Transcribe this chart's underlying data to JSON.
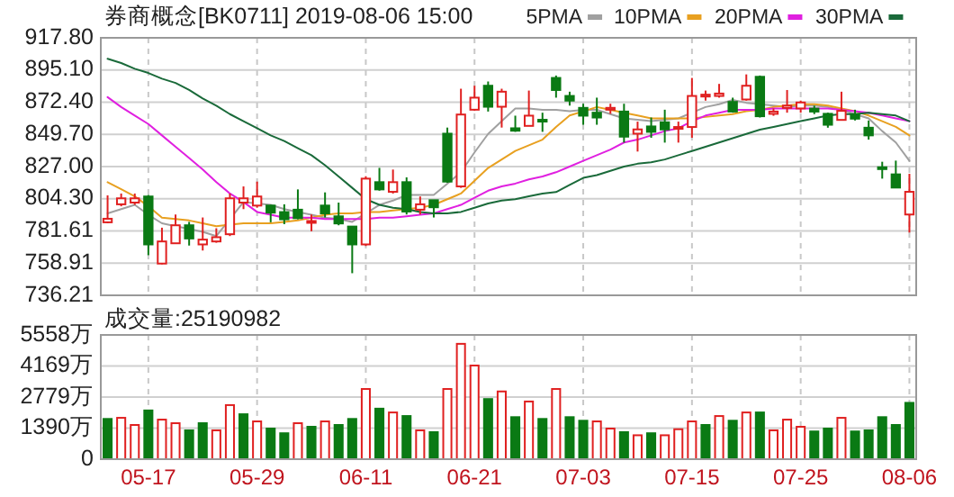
{
  "chart_data": [
    {
      "type": "candlestick",
      "title": "券商概念[BK0711] 2019-08-06 15:00",
      "categories": [
        null,
        null,
        null,
        null,
        null,
        null,
        null,
        null,
        null,
        null,
        null,
        null,
        null,
        null,
        null,
        null,
        null,
        null,
        null,
        null,
        null,
        null,
        null,
        null,
        null,
        null,
        null,
        null,
        null,
        null,
        null,
        null,
        null,
        null,
        null,
        null,
        null,
        null,
        null,
        null,
        null,
        null,
        null,
        null,
        null,
        null,
        null,
        null,
        null,
        null,
        null,
        null,
        null,
        null,
        null,
        null,
        null,
        null,
        null,
        null
      ],
      "ohlc": [
        [
          787.7,
          806.7,
          787,
          790.2
        ],
        [
          800.4,
          808,
          799,
          804.6
        ],
        [
          801.6,
          808,
          800,
          804.6
        ],
        [
          805.9,
          807,
          764.5,
          772.1
        ],
        [
          758.6,
          783.9,
          758.1,
          774.2
        ],
        [
          772.9,
          793.2,
          772.5,
          785.6
        ],
        [
          785.6,
          788,
          771.3,
          776.3
        ],
        [
          772.1,
          791.1,
          767.8,
          775.5
        ],
        [
          774.2,
          783.5,
          773.3,
          777.2
        ],
        [
          779.3,
          808,
          778,
          804.6
        ],
        [
          801.6,
          813,
          797,
          804.6
        ],
        [
          799.5,
          816.4,
          798,
          805.9
        ],
        [
          799.5,
          800,
          787.7,
          794.5
        ],
        [
          794.9,
          800.4,
          786.4,
          789.8
        ],
        [
          796.6,
          810.9,
          789.8,
          790.6
        ],
        [
          788.1,
          793.2,
          781.4,
          788.6
        ],
        [
          799.5,
          808.8,
          791.1,
          794
        ],
        [
          791.9,
          801.6,
          785.6,
          786.9
        ],
        [
          784.7,
          785,
          751.8,
          772.1
        ],
        [
          772.1,
          820.2,
          771,
          818.5
        ],
        [
          816,
          826.1,
          810,
          810.9
        ],
        [
          809.2,
          824.9,
          808,
          816
        ],
        [
          816,
          819.4,
          793.2,
          795.3
        ],
        [
          796.6,
          805.9,
          793.2,
          800.4
        ],
        [
          803.3,
          803.3,
          791.1,
          798.3
        ],
        [
          850.2,
          854.5,
          815.6,
          816.4
        ],
        [
          813,
          881.9,
          812,
          863.7
        ],
        [
          867.1,
          884,
          866.3,
          875.6
        ],
        [
          884,
          887,
          865.8,
          869.2
        ],
        [
          869.2,
          881.9,
          854.5,
          879.8
        ],
        [
          854,
          862.9,
          851.5,
          852.3
        ],
        [
          855.7,
          880.6,
          855.7,
          862.9
        ],
        [
          860,
          865,
          851.5,
          859
        ],
        [
          889.5,
          891.2,
          875.6,
          881
        ],
        [
          876.8,
          879.8,
          870,
          873.5
        ],
        [
          868.4,
          871.3,
          856.5,
          862.9
        ],
        [
          865,
          875.6,
          856.5,
          861.6
        ],
        [
          867.1,
          871.3,
          864.2,
          868.4
        ],
        [
          865.8,
          871.3,
          843.9,
          848.1
        ],
        [
          850.2,
          858.7,
          837.6,
          853.2
        ],
        [
          855.3,
          861.6,
          847.3,
          851.5
        ],
        [
          858.2,
          867.1,
          843.9,
          853.2
        ],
        [
          854.4,
          858.7,
          843.9,
          854.9
        ],
        [
          854.9,
          889.5,
          847.3,
          876.8
        ],
        [
          876.4,
          880.6,
          873.5,
          877.7
        ],
        [
          876.8,
          885.3,
          875.6,
          878.5
        ],
        [
          872.6,
          875.6,
          865,
          865.8
        ],
        [
          874.3,
          892,
          873.5,
          884
        ],
        [
          890.3,
          891.2,
          861.6,
          862.5
        ],
        [
          864.2,
          868,
          862.8,
          865.8
        ],
        [
          868.4,
          881,
          865,
          870
        ],
        [
          868,
          873.5,
          865,
          872.2
        ],
        [
          867.9,
          870,
          864,
          865.8
        ],
        [
          864.2,
          865,
          854.4,
          856.5
        ],
        [
          859.9,
          879.8,
          859.5,
          866.3
        ],
        [
          863.7,
          867.1,
          859.5,
          860.8
        ],
        [
          854.4,
          859.5,
          846,
          849
        ],
        [
          826.5,
          830.4,
          818.5,
          826.1
        ],
        [
          821.5,
          831.2,
          812.2,
          812.2
        ],
        [
          793.2,
          821.9,
          780.5,
          809.2
        ]
      ],
      "colors": [
        "#e02020",
        "#e02020",
        "#e02020",
        "#0a7a14",
        "#e02020",
        "#e02020",
        "#0a7a14",
        "#e02020",
        "#e02020",
        "#e02020",
        "#e02020",
        "#e02020",
        "#0a7a14",
        "#0a7a14",
        "#0a7a14",
        "#e02020",
        "#0a7a14",
        "#0a7a14",
        "#0a7a14",
        "#e02020",
        "#0a7a14",
        "#e02020",
        "#0a7a14",
        "#e02020",
        "#0a7a14",
        "#0a7a14",
        "#e02020",
        "#e02020",
        "#0a7a14",
        "#e02020",
        "#0a7a14",
        "#e02020",
        "#0a7a14",
        "#0a7a14",
        "#0a7a14",
        "#0a7a14",
        "#0a7a14",
        "#e02020",
        "#0a7a14",
        "#e02020",
        "#0a7a14",
        "#0a7a14",
        "#e02020",
        "#e02020",
        "#e02020",
        "#e02020",
        "#0a7a14",
        "#e02020",
        "#0a7a14",
        "#e02020",
        "#e02020",
        "#e02020",
        "#0a7a14",
        "#0a7a14",
        "#e02020",
        "#0a7a14",
        "#0a7a14",
        "#0a7a14",
        "#0a7a14",
        "#e02020"
      ],
      "series": [
        {
          "name": "5PMA",
          "type": "line",
          "color": "#a0a0a0",
          "values": [
            794,
            797,
            800,
            793,
            787,
            785,
            783,
            781,
            778,
            790,
            802,
            801,
            800,
            797,
            795,
            793,
            791,
            790,
            788,
            794,
            800,
            803,
            807,
            807,
            807,
            815,
            823,
            837,
            850,
            859,
            868,
            868,
            867,
            867,
            866,
            867,
            867,
            864,
            861,
            860,
            859,
            860,
            861,
            865,
            869,
            871,
            874,
            872,
            871,
            870,
            869,
            870,
            870,
            869,
            867,
            864,
            861,
            852,
            844,
            831
          ]
        },
        {
          "name": "10PMA",
          "type": "line",
          "color": "#e8a020",
          "values": [
            816,
            811,
            806,
            799,
            791,
            790,
            789,
            787,
            785,
            786,
            787,
            787,
            787,
            788,
            789,
            791,
            793,
            794,
            794,
            795,
            795,
            796,
            797,
            798,
            800,
            804,
            808,
            817,
            826,
            832,
            838,
            842,
            846,
            855,
            863,
            866,
            869,
            867,
            865,
            863,
            861,
            861,
            861,
            861,
            862,
            863,
            864,
            866,
            867,
            869,
            870,
            871,
            871,
            870,
            868,
            866,
            863,
            859,
            855,
            849
          ]
        },
        {
          "name": "20PMA",
          "type": "line",
          "color": "#e020e0",
          "values": [
            876,
            869,
            863,
            857,
            849,
            841,
            833,
            825,
            816,
            808,
            802,
            795,
            793,
            791,
            791,
            791,
            790,
            790,
            790,
            790,
            791,
            791,
            792,
            793,
            794,
            797,
            800,
            805,
            810,
            813,
            815,
            818,
            820,
            823,
            827,
            831,
            835,
            839,
            844,
            846,
            849,
            852,
            854,
            859,
            863,
            865,
            867,
            867,
            867,
            868,
            868,
            868,
            868,
            868,
            867,
            866,
            865,
            863,
            861,
            859
          ]
        },
        {
          "name": "30PMA",
          "type": "line",
          "color": "#1a6a3a",
          "values": [
            903,
            900,
            896,
            893,
            889,
            886,
            881,
            875,
            870,
            864,
            859,
            854,
            849,
            845,
            840,
            835,
            828,
            820,
            812,
            804,
            800,
            798,
            797,
            795,
            794,
            794,
            795,
            798,
            801,
            803,
            804,
            806,
            808,
            809,
            814,
            819,
            821,
            824,
            827,
            829,
            830,
            832,
            835,
            838,
            841,
            844,
            847,
            850,
            853,
            855,
            857,
            859,
            861,
            863,
            864,
            864,
            865,
            864,
            863,
            859
          ]
        }
      ],
      "ylim": [
        736.21,
        917.8
      ],
      "yticks": [
        {
          "value": 736.21,
          "label": "736.21"
        },
        {
          "value": 758.91,
          "label": "758.91"
        },
        {
          "value": 781.61,
          "label": "781.61"
        },
        {
          "value": 804.3,
          "label": "804.30"
        },
        {
          "value": 827,
          "label": "827.00"
        },
        {
          "value": 849.7,
          "label": "849.70"
        },
        {
          "value": 872.4,
          "label": "872.40"
        },
        {
          "value": 895.1,
          "label": "895.10"
        },
        {
          "value": 917.8,
          "label": "917.80"
        }
      ],
      "grid": true,
      "legend": "top right",
      "tick_labels": "y"
    },
    {
      "type": "bar",
      "title": "成交量:25190982",
      "categories": [
        null,
        null,
        null,
        "05-17",
        null,
        null,
        null,
        null,
        null,
        null,
        null,
        "05-29",
        null,
        null,
        null,
        null,
        null,
        null,
        null,
        "06-11",
        null,
        null,
        null,
        null,
        null,
        null,
        null,
        "06-21",
        null,
        null,
        null,
        null,
        null,
        null,
        null,
        "07-03",
        null,
        null,
        null,
        null,
        null,
        null,
        null,
        "07-15",
        null,
        null,
        null,
        null,
        null,
        null,
        null,
        "07-25",
        null,
        null,
        null,
        null,
        null,
        null,
        null,
        "08-06"
      ],
      "values": [
        1800,
        1850,
        1530,
        2180,
        1770,
        1610,
        1290,
        1610,
        1290,
        2420,
        2010,
        1690,
        1370,
        1160,
        1610,
        1450,
        1690,
        1530,
        1800,
        3140,
        2260,
        2090,
        1930,
        1290,
        1210,
        3140,
        5160,
        4190,
        2690,
        3030,
        1880,
        2580,
        1800,
        3140,
        1880,
        1720,
        1690,
        1370,
        1210,
        1070,
        1160,
        1070,
        1340,
        1690,
        1530,
        1930,
        1720,
        2090,
        2090,
        1290,
        1770,
        1450,
        1240,
        1370,
        1850,
        1240,
        1290,
        1880,
        1530,
        2520
      ],
      "colors": [
        "#0a7a14",
        "#e02020",
        "#e02020",
        "#0a7a14",
        "#e02020",
        "#e02020",
        "#0a7a14",
        "#0a7a14",
        "#e02020",
        "#e02020",
        "#0a7a14",
        "#e02020",
        "#0a7a14",
        "#0a7a14",
        "#e02020",
        "#0a7a14",
        "#e02020",
        "#0a7a14",
        "#0a7a14",
        "#e02020",
        "#0a7a14",
        "#e02020",
        "#0a7a14",
        "#e02020",
        "#0a7a14",
        "#e02020",
        "#e02020",
        "#e02020",
        "#0a7a14",
        "#e02020",
        "#0a7a14",
        "#e02020",
        "#0a7a14",
        "#e02020",
        "#0a7a14",
        "#0a7a14",
        "#e02020",
        "#e02020",
        "#0a7a14",
        "#e02020",
        "#0a7a14",
        "#e02020",
        "#e02020",
        "#e02020",
        "#0a7a14",
        "#e02020",
        "#0a7a14",
        "#e02020",
        "#0a7a14",
        "#e02020",
        "#e02020",
        "#e02020",
        "#0a7a14",
        "#0a7a14",
        "#e02020",
        "#0a7a14",
        "#0a7a14",
        "#0a7a14",
        "#0a7a14",
        "#0a7a14"
      ],
      "ylim": [
        0,
        5558
      ],
      "yticks": [
        0,
        {
          "value": 1390,
          "label": "1390万"
        },
        {
          "value": 2779,
          "label": "2779万"
        },
        {
          "value": 4169,
          "label": "4169万"
        },
        {
          "value": 5558,
          "label": "5558万"
        }
      ],
      "grid": true
    }
  ]
}
